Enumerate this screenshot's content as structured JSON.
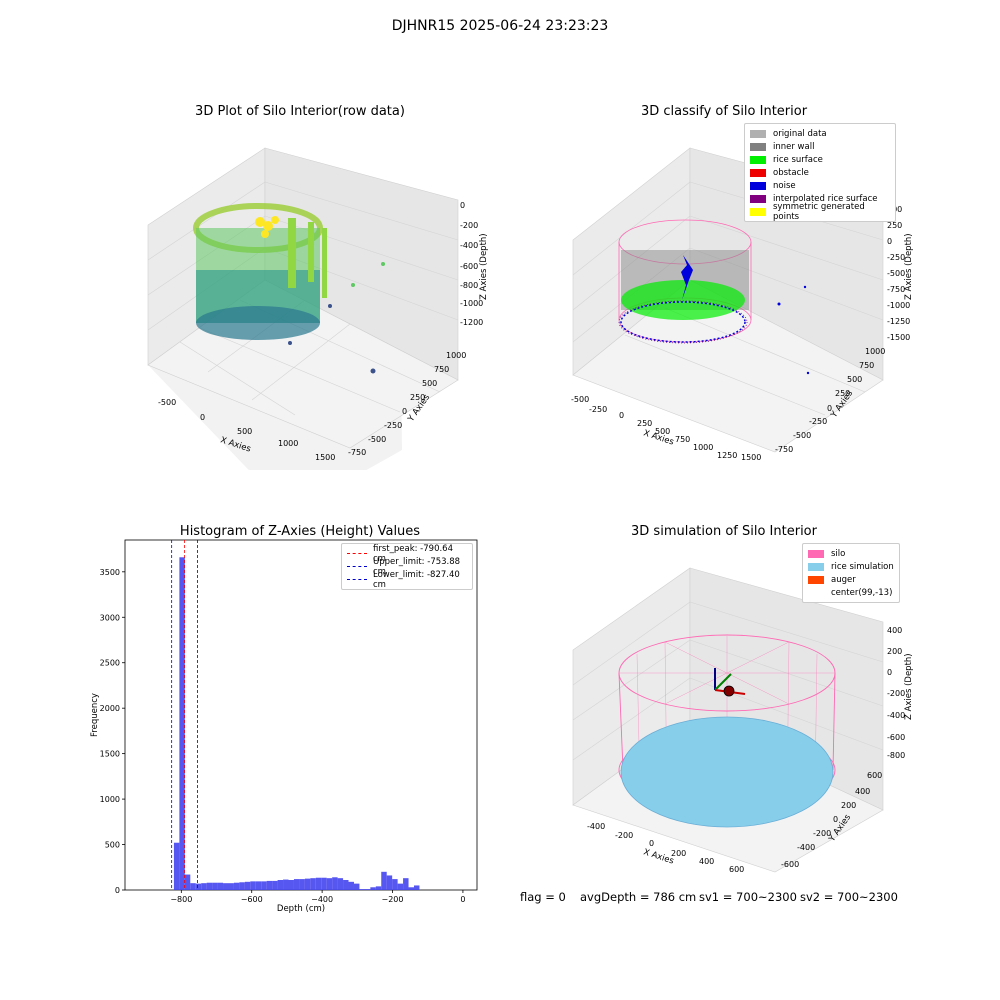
{
  "suptitle": "DJHNR15 2025-06-24 23:23:23",
  "panels": {
    "p1": {
      "title": "3D Plot of Silo Interior(row data)",
      "xlabel": "X Axies",
      "ylabel": "Y Axies",
      "zlabel": "Z Axies (Depth)",
      "xticks": [
        "-500",
        "0",
        "500",
        "1000",
        "1500"
      ],
      "yticks": [
        "-750",
        "-500",
        "-250",
        "0",
        "250",
        "500",
        "750",
        "1000"
      ],
      "zticks": [
        "0",
        "-200",
        "-400",
        "-600",
        "-800",
        "-1000",
        "-1200"
      ]
    },
    "p2": {
      "title": "3D classify of Silo Interior",
      "xlabel": "X Axies",
      "ylabel": "Y Axies",
      "zlabel": "Z Axies (Depth)",
      "xticks": [
        "-500",
        "-250",
        "0",
        "250",
        "500",
        "750",
        "1000",
        "1250",
        "1500"
      ],
      "yticks": [
        "-750",
        "-500",
        "-250",
        "0",
        "250",
        "500",
        "750",
        "1000"
      ],
      "zticks": [
        "500",
        "250",
        "0",
        "-250",
        "-500",
        "-750",
        "-1000",
        "-1250",
        "-1500"
      ],
      "legend": [
        {
          "label": "original data",
          "color": "#b0b0b0"
        },
        {
          "label": "inner wall",
          "color": "#808080"
        },
        {
          "label": "rice surface",
          "color": "#00ee00"
        },
        {
          "label": "obstacle",
          "color": "#ee0000"
        },
        {
          "label": "noise",
          "color": "#0000dd"
        },
        {
          "label": "interpolated rice surface",
          "color": "#800080"
        },
        {
          "label": "symmetric generated points",
          "color": "#ffff00"
        }
      ]
    },
    "p3": {
      "title": "Histogram of Z-Axies (Height) Values",
      "xlabel": "Depth (cm)",
      "ylabel": "Frequency",
      "legend": [
        {
          "label": "first_peak: -790.64 cm",
          "color": "#ff0000"
        },
        {
          "label": "Upper_limit: -753.88 cm",
          "color": "#0000cc"
        },
        {
          "label": "Lower_limit: -827.40 cm",
          "color": "#0000cc"
        }
      ]
    },
    "p4": {
      "title": "3D simulation of Silo Interior",
      "xlabel": "X Axies",
      "ylabel": "Y Axies",
      "zlabel": "Z Axies (Depth)",
      "xticks": [
        "-400",
        "-200",
        "0",
        "200",
        "400",
        "600"
      ],
      "yticks": [
        "-600",
        "-400",
        "-200",
        "0",
        "200",
        "400",
        "600"
      ],
      "zticks": [
        "400",
        "200",
        "0",
        "-200",
        "-400",
        "-600",
        "-800"
      ],
      "legend": [
        {
          "label": "silo",
          "color": "#ff69b4"
        },
        {
          "label": "rice simulation",
          "color": "#87ceeb"
        },
        {
          "label": "auger",
          "color": "#ff4500"
        },
        {
          "label": "center(99,-13)",
          "color": ""
        }
      ]
    }
  },
  "status": {
    "flag": "flag = 0",
    "avg": "avgDepth = 786 cm",
    "sv1": "sv1 = 700~2300",
    "sv2": "sv2 = 700~2300"
  },
  "chart_data": [
    {
      "type": "bar",
      "title": "Histogram of Z-Axies (Height) Values",
      "xlabel": "Depth (cm)",
      "ylabel": "Frequency",
      "xlim": [
        -960,
        40
      ],
      "ylim": [
        0,
        3850
      ],
      "xticks": [
        -800,
        -600,
        -400,
        -200,
        0
      ],
      "yticks": [
        0,
        500,
        1000,
        1500,
        2000,
        2500,
        3000,
        3500
      ],
      "bin_width": 15.5,
      "bin_edges_start": -821,
      "values": [
        520,
        3660,
        170,
        75,
        70,
        75,
        80,
        80,
        80,
        75,
        75,
        80,
        85,
        90,
        95,
        95,
        95,
        100,
        100,
        110,
        115,
        110,
        120,
        120,
        125,
        130,
        135,
        135,
        130,
        140,
        130,
        110,
        90,
        70,
        10,
        10,
        30,
        40,
        200,
        160,
        120,
        70,
        130,
        30,
        50
      ],
      "vlines": [
        {
          "name": "first_peak: -790.64 cm",
          "x": -790.64,
          "color": "#ff0000"
        },
        {
          "name": "Upper_limit: -753.88 cm",
          "x": -753.88,
          "color": "#0000cc"
        },
        {
          "name": "Lower_limit: -827.40 cm",
          "x": -827.4,
          "color": "#0000cc"
        }
      ]
    }
  ]
}
